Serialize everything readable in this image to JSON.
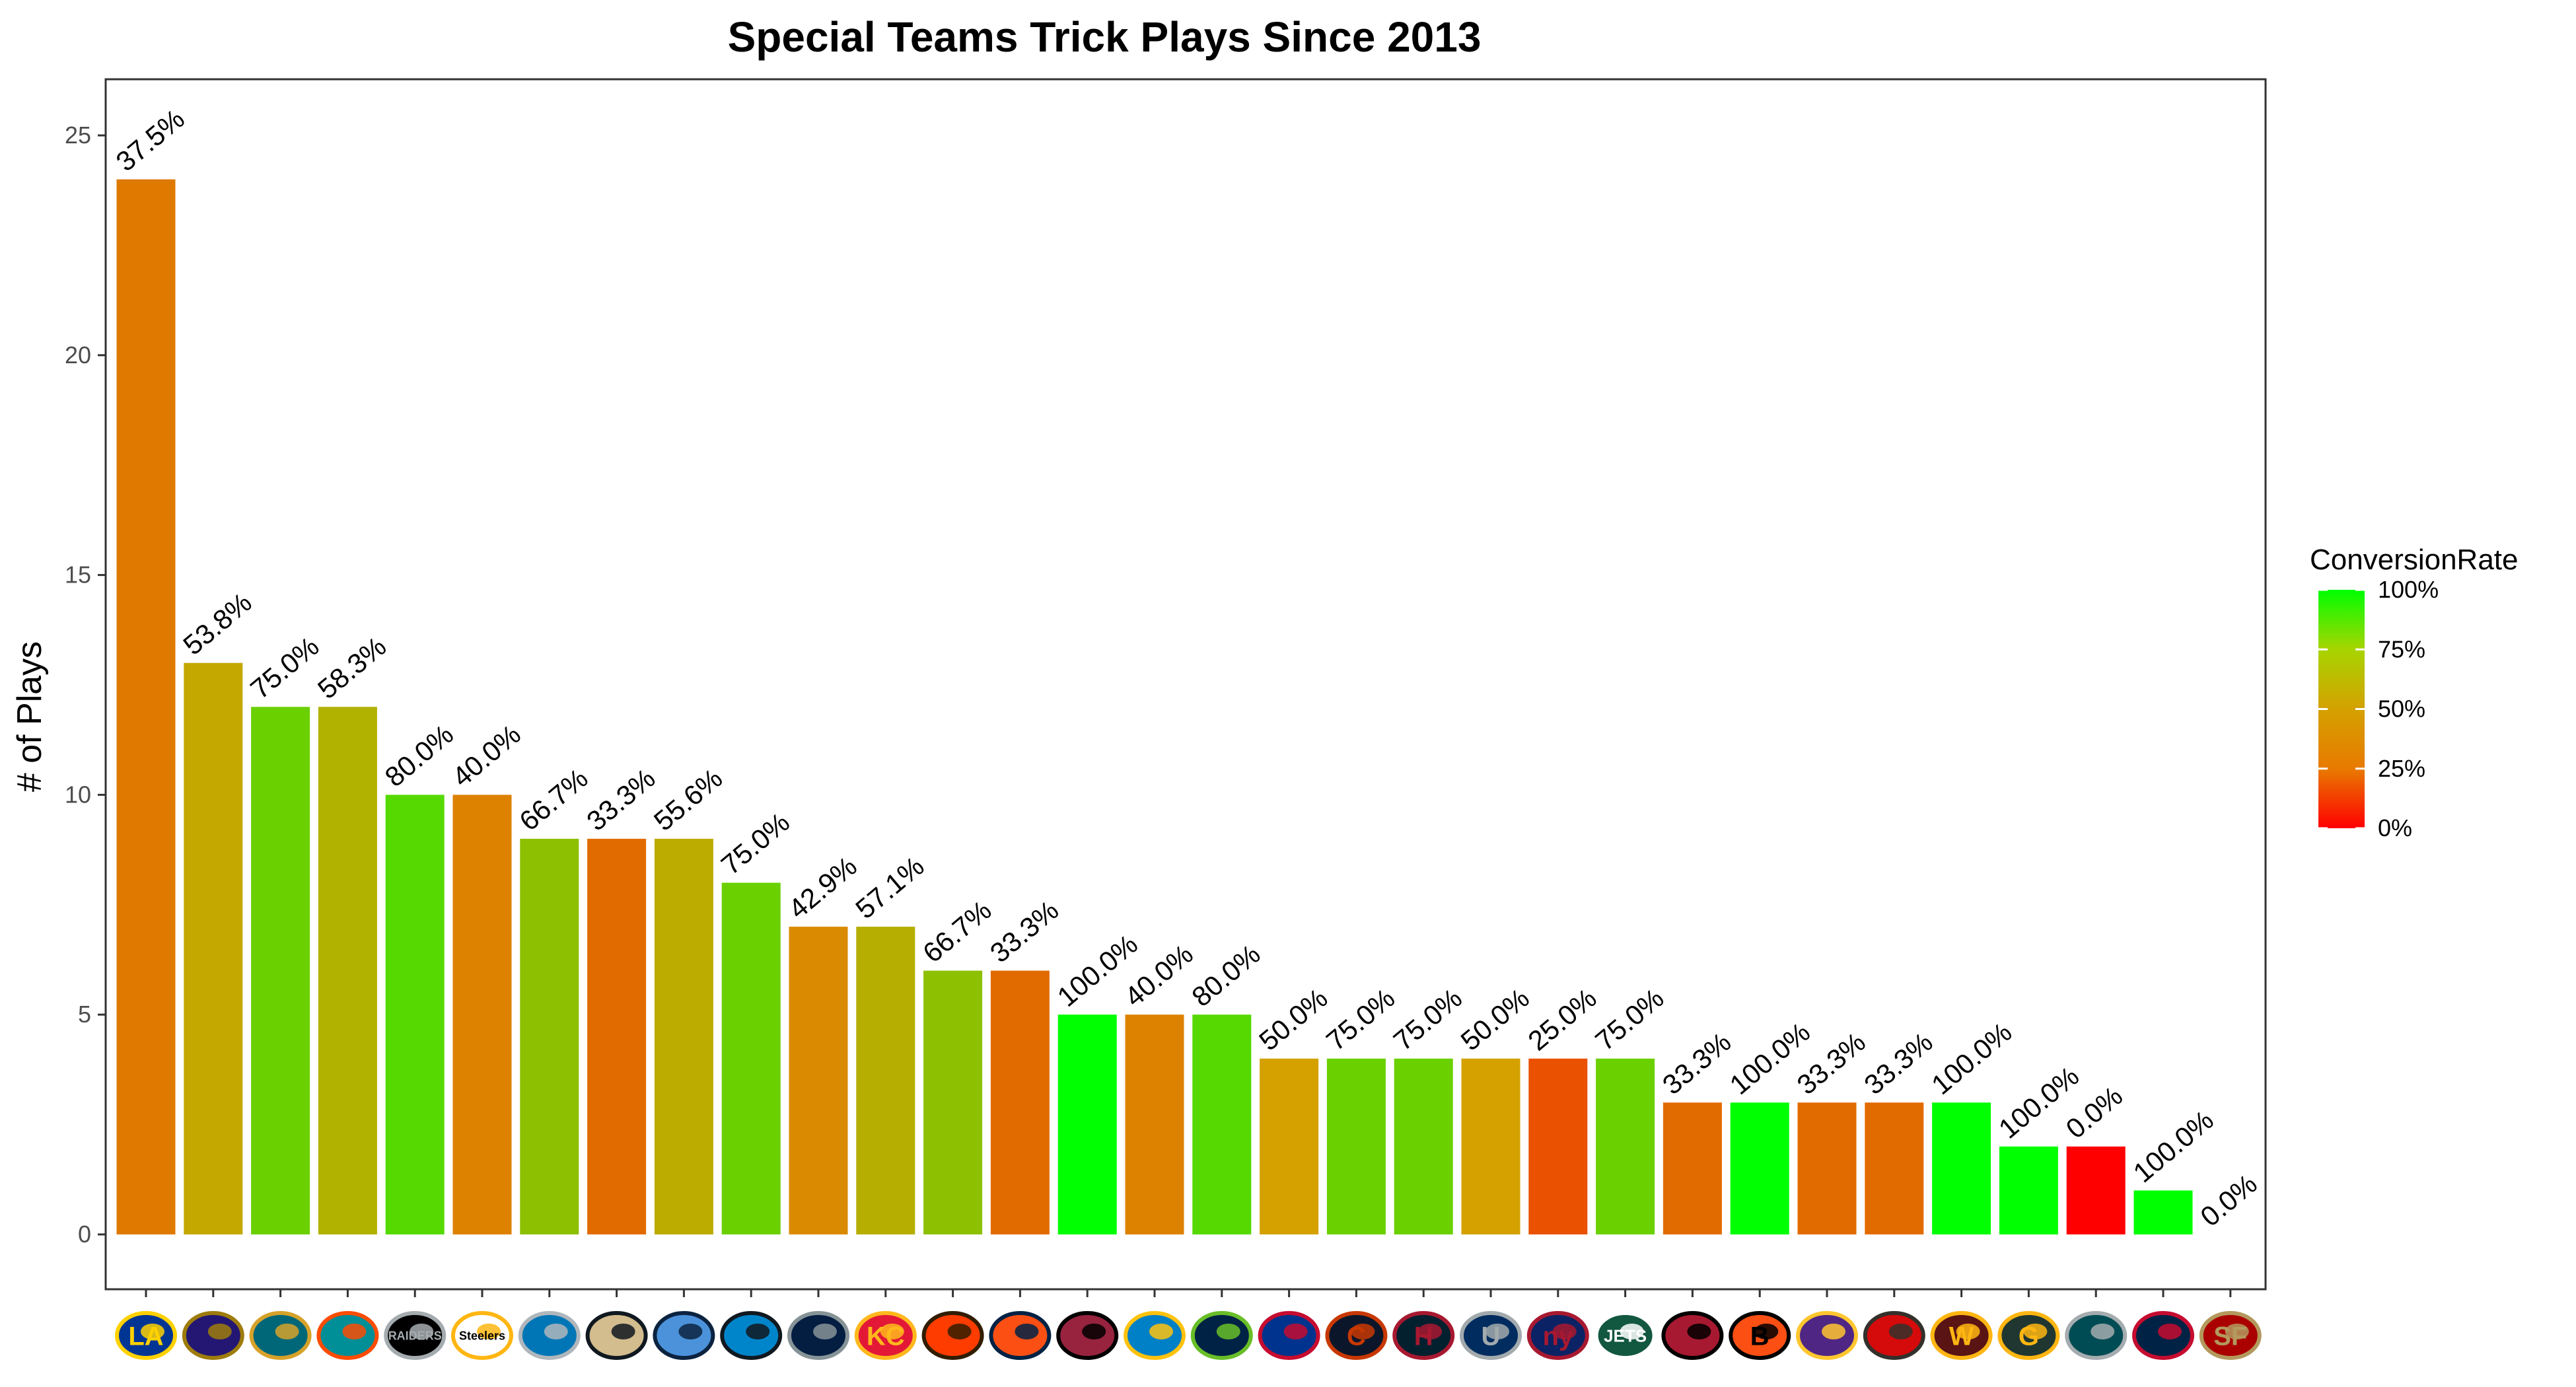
{
  "chart_data": {
    "type": "bar",
    "title": "Special Teams Trick Plays Since 2013",
    "xlabel": "",
    "ylabel": "# of Plays",
    "ylim": [
      -1,
      26
    ],
    "yticks": [
      0,
      5,
      10,
      15,
      20,
      25
    ],
    "grid": false,
    "legend": {
      "title": "ConversionRate",
      "position": "right",
      "ticks": [
        "100%",
        "75%",
        "50%",
        "25%",
        "0%"
      ],
      "low_color": "#ff0000",
      "mid_color": "#d4a100",
      "high_color": "#00ff00"
    },
    "categories": [
      "LA",
      "BAL",
      "JAX",
      "MIA",
      "LV",
      "PIT",
      "DET",
      "NO",
      "TEN",
      "CAR",
      "DAL",
      "KC",
      "CLE",
      "DEN",
      "ARI",
      "LAC",
      "SEA",
      "BUF",
      "CHI",
      "HOU",
      "IND",
      "NYG",
      "NYJ",
      "ATL",
      "CIN",
      "MIN",
      "TB",
      "WAS",
      "GB",
      "PHI",
      "NE",
      "SF"
    ],
    "values": [
      24,
      13,
      12,
      12,
      10,
      10,
      9,
      9,
      9,
      8,
      7,
      7,
      6,
      6,
      5,
      5,
      5,
      4,
      4,
      4,
      4,
      4,
      4,
      3,
      3,
      3,
      3,
      3,
      2,
      2,
      1,
      0
    ],
    "conversion_rates": [
      37.5,
      53.8,
      75.0,
      58.3,
      80.0,
      40.0,
      66.7,
      33.3,
      55.6,
      75.0,
      42.9,
      57.1,
      66.7,
      33.3,
      100.0,
      40.0,
      80.0,
      50.0,
      75.0,
      75.0,
      50.0,
      25.0,
      75.0,
      33.3,
      100.0,
      33.3,
      33.3,
      100.0,
      100.0,
      0.0,
      100.0,
      0.0
    ],
    "data_labels": [
      "37.5%",
      "53.8%",
      "75.0%",
      "58.3%",
      "80.0%",
      "40.0%",
      "66.7%",
      "33.3%",
      "55.6%",
      "75.0%",
      "42.9%",
      "57.1%",
      "66.7%",
      "33.3%",
      "100.0%",
      "40.0%",
      "80.0%",
      "50.0%",
      "75.0%",
      "75.0%",
      "50.0%",
      "25.0%",
      "75.0%",
      "33.3%",
      "100.0%",
      "33.3%",
      "33.3%",
      "100.0%",
      "100.0%",
      "0.0%",
      "100.0%",
      "0.0%"
    ],
    "team_logos": [
      {
        "text": "LA",
        "color": "#003594",
        "accent": "#ffd100"
      },
      {
        "text": "",
        "color": "#241773",
        "accent": "#9e7c0c"
      },
      {
        "text": "",
        "color": "#006778",
        "accent": "#d7a22a"
      },
      {
        "text": "",
        "color": "#008e97",
        "accent": "#fc4c02"
      },
      {
        "text": "RAIDERS",
        "color": "#000000",
        "accent": "#a5acaf"
      },
      {
        "text": "Steelers",
        "color": "#ffffff",
        "accent": "#ffb612"
      },
      {
        "text": "",
        "color": "#0076b6",
        "accent": "#b0b7bc"
      },
      {
        "text": "",
        "color": "#d3bc8d",
        "accent": "#101820"
      },
      {
        "text": "",
        "color": "#4b92db",
        "accent": "#0c2340"
      },
      {
        "text": "",
        "color": "#0085ca",
        "accent": "#101820"
      },
      {
        "text": "",
        "color": "#041e42",
        "accent": "#869397"
      },
      {
        "text": "KC",
        "color": "#e31837",
        "accent": "#ffb81c"
      },
      {
        "text": "",
        "color": "#ff3c00",
        "accent": "#311d00"
      },
      {
        "text": "",
        "color": "#fb4f14",
        "accent": "#002244"
      },
      {
        "text": "",
        "color": "#97233f",
        "accent": "#000000"
      },
      {
        "text": "",
        "color": "#0080c6",
        "accent": "#ffc20e"
      },
      {
        "text": "",
        "color": "#002244",
        "accent": "#69be28"
      },
      {
        "text": "",
        "color": "#00338d",
        "accent": "#c60c30"
      },
      {
        "text": "C",
        "color": "#0b162a",
        "accent": "#c83803"
      },
      {
        "text": "H",
        "color": "#03202f",
        "accent": "#a71930"
      },
      {
        "text": "U",
        "color": "#002c5f",
        "accent": "#a2aaad"
      },
      {
        "text": "ny",
        "color": "#0b2265",
        "accent": "#a71930"
      },
      {
        "text": "JETS",
        "color": "#125740",
        "accent": "#ffffff"
      },
      {
        "text": "",
        "color": "#a71930",
        "accent": "#000000"
      },
      {
        "text": "B",
        "color": "#fb4f14",
        "accent": "#000000"
      },
      {
        "text": "",
        "color": "#4f2683",
        "accent": "#ffc62f"
      },
      {
        "text": "",
        "color": "#d50a0a",
        "accent": "#34302b"
      },
      {
        "text": "W",
        "color": "#5a1414",
        "accent": "#ffb612"
      },
      {
        "text": "G",
        "color": "#203731",
        "accent": "#ffb612"
      },
      {
        "text": "",
        "color": "#004c54",
        "accent": "#a5acaf"
      },
      {
        "text": "",
        "color": "#002244",
        "accent": "#c60c30"
      },
      {
        "text": "SF",
        "color": "#aa0000",
        "accent": "#b3995d"
      }
    ]
  }
}
